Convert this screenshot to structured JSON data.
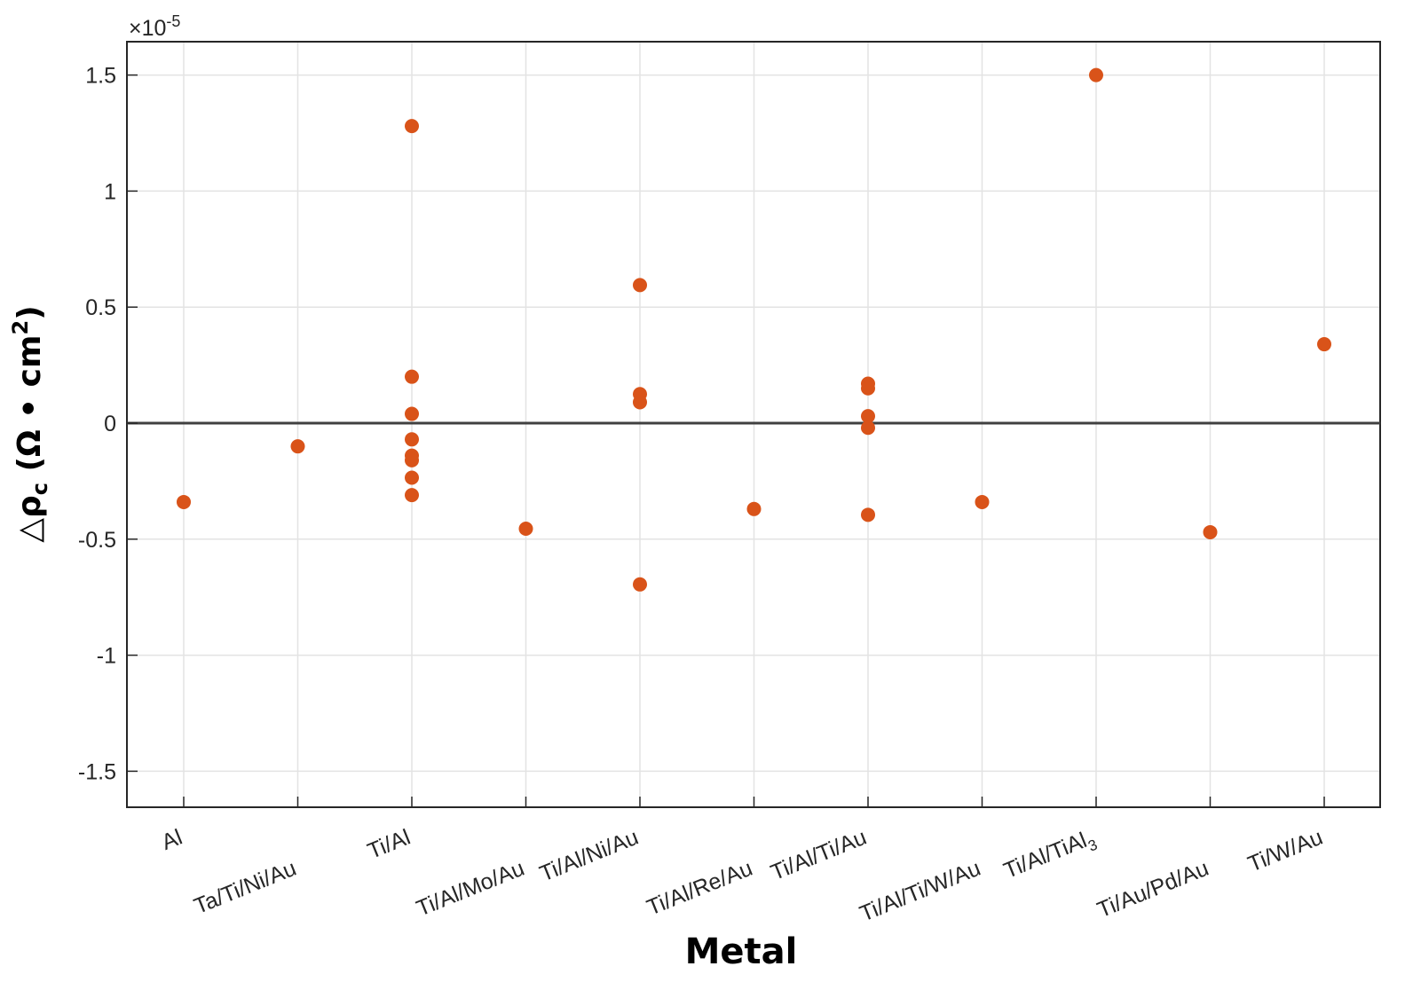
{
  "chart_data": {
    "type": "scatter",
    "xlabel": "Metal",
    "ylabel": {
      "prefix": "△ρ",
      "subscript": "c",
      "unit": " (Ω • cm",
      "superscript": "2",
      "suffix": ")"
    },
    "y_exponent_label": {
      "base": "×10",
      "exponent": "-5"
    },
    "categories": [
      "Al",
      "Ta/Ti/Ni/Au",
      "Ti/Al",
      "Ti/Al/Mo/Au",
      "Ti/Al/Ni/Au",
      "Ti/Al/Re/Au",
      "Ti/Al/Ti/Au",
      "Ti/Al/Ti/W/Au",
      "Ti/Al/TiAl3",
      "Ti/Au/Pd/Au",
      "Ti/W/Au"
    ],
    "category_labels": [
      {
        "text": "Al",
        "sub": ""
      },
      {
        "text": "Ta/Ti/Ni/Au",
        "sub": ""
      },
      {
        "text": "Ti/Al",
        "sub": ""
      },
      {
        "text": "Ti/Al/Mo/Au",
        "sub": ""
      },
      {
        "text": "Ti/Al/Ni/Au",
        "sub": ""
      },
      {
        "text": "Ti/Al/Re/Au",
        "sub": ""
      },
      {
        "text": "Ti/Al/Ti/Au",
        "sub": ""
      },
      {
        "text": "Ti/Al/Ti/W/Au",
        "sub": ""
      },
      {
        "text": "Ti/Al/TiAl",
        "sub": "3"
      },
      {
        "text": "Ti/Au/Pd/Au",
        "sub": ""
      },
      {
        "text": "Ti/W/Au",
        "sub": ""
      }
    ],
    "ylim": [
      -1.65,
      1.65
    ],
    "yticks": [
      -1.5,
      -1,
      -0.5,
      0,
      0.5,
      1,
      1.5
    ],
    "ytick_labels": [
      "-1.5",
      "-1",
      "-0.5",
      "0",
      "0.5",
      "1",
      "1.5"
    ],
    "grid": true,
    "zero_line": true,
    "marker_color": "#D95319",
    "points": [
      {
        "x": "Al",
        "y": -0.34
      },
      {
        "x": "Ta/Ti/Ni/Au",
        "y": -0.1
      },
      {
        "x": "Ti/Al",
        "y": 1.28
      },
      {
        "x": "Ti/Al",
        "y": 0.2
      },
      {
        "x": "Ti/Al",
        "y": 0.04
      },
      {
        "x": "Ti/Al",
        "y": -0.07
      },
      {
        "x": "Ti/Al",
        "y": -0.14
      },
      {
        "x": "Ti/Al",
        "y": -0.16
      },
      {
        "x": "Ti/Al",
        "y": -0.235
      },
      {
        "x": "Ti/Al",
        "y": -0.31
      },
      {
        "x": "Ti/Al/Mo/Au",
        "y": -0.455
      },
      {
        "x": "Ti/Al/Ni/Au",
        "y": 0.595
      },
      {
        "x": "Ti/Al/Ni/Au",
        "y": 0.125
      },
      {
        "x": "Ti/Al/Ni/Au",
        "y": 0.09
      },
      {
        "x": "Ti/Al/Ni/Au",
        "y": -0.695
      },
      {
        "x": "Ti/Al/Re/Au",
        "y": -0.37
      },
      {
        "x": "Ti/Al/Ti/Au",
        "y": 0.17
      },
      {
        "x": "Ti/Al/Ti/Au",
        "y": 0.15
      },
      {
        "x": "Ti/Al/Ti/Au",
        "y": 0.03
      },
      {
        "x": "Ti/Al/Ti/Au",
        "y": -0.02
      },
      {
        "x": "Ti/Al/Ti/Au",
        "y": -0.395
      },
      {
        "x": "Ti/Al/Ti/W/Au",
        "y": -0.34
      },
      {
        "x": "Ti/Al/TiAl3",
        "y": 1.5
      },
      {
        "x": "Ti/Au/Pd/Au",
        "y": -0.47
      },
      {
        "x": "Ti/W/Au",
        "y": 0.34
      }
    ]
  }
}
